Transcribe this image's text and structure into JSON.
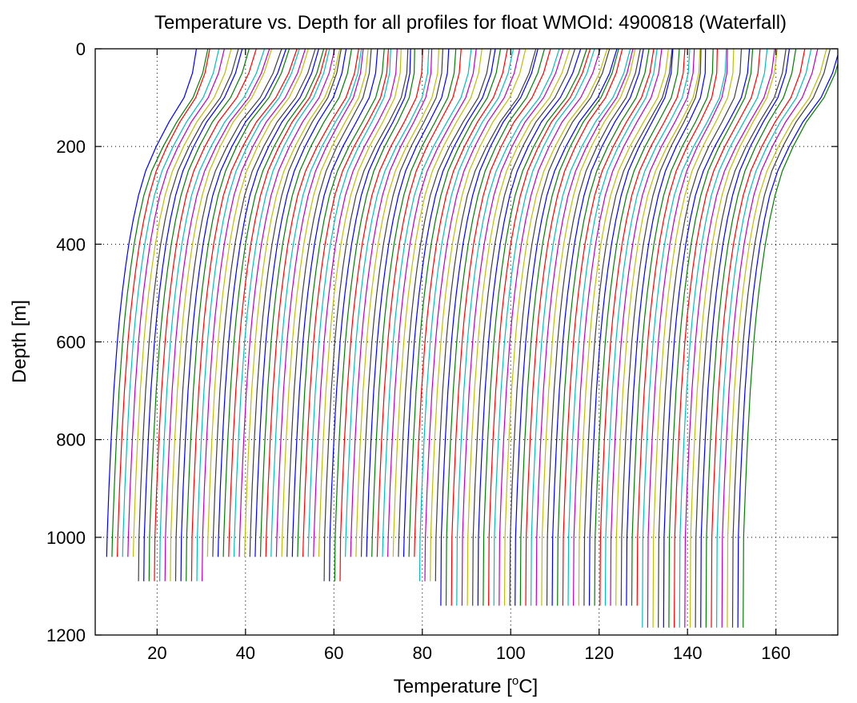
{
  "chart_data": {
    "type": "line",
    "title": "Temperature vs. Depth for all profiles for float WMOId: 4900818 (Waterfall)",
    "xlabel": "Temperature [",
    "xlabel_sup": "o",
    "xlabel_tail": "C]",
    "ylabel": "Depth [m]",
    "xlim": [
      6,
      174
    ],
    "ylim": [
      0,
      1200
    ],
    "y_reversed": true,
    "grid": true,
    "xticks": [
      20,
      40,
      60,
      80,
      100,
      120,
      140,
      160
    ],
    "yticks": [
      0,
      200,
      400,
      600,
      800,
      1000,
      1200
    ],
    "color_cycle": [
      "#0000ff",
      "#008000",
      "#ff0000",
      "#00bfbf",
      "#bf00bf",
      "#bfbf00",
      "#404040"
    ],
    "profile_count": 121,
    "profile_offset_step": 1.2,
    "first_profile_surface_temperature": 28,
    "depth_samples": [
      0,
      50,
      100,
      150,
      200,
      250,
      300,
      350,
      400,
      450,
      500,
      550,
      600,
      650,
      700,
      750,
      800,
      850,
      900,
      950,
      1000
    ],
    "mean_profile_temperature": [
      28.0,
      27.5,
      26.0,
      23.0,
      20.0,
      17.5,
      15.8,
      14.6,
      13.6,
      12.8,
      12.1,
      11.5,
      11.0,
      10.6,
      10.2,
      9.9,
      9.6,
      9.35,
      9.1,
      8.9,
      8.7
    ],
    "profile_bottom_depths": [
      {
        "from_profile": 0,
        "to_profile": 5,
        "depth": 1040
      },
      {
        "from_profile": 6,
        "to_profile": 18,
        "depth": 1090
      },
      {
        "from_profile": 19,
        "to_profile": 40,
        "depth": 1040
      },
      {
        "from_profile": 41,
        "to_profile": 44,
        "depth": 1090
      },
      {
        "from_profile": 45,
        "to_profile": 58,
        "depth": 1040
      },
      {
        "from_profile": 59,
        "to_profile": 62,
        "depth": 1090
      },
      {
        "from_profile": 63,
        "to_profile": 100,
        "depth": 1140
      },
      {
        "from_profile": 101,
        "to_profile": 120,
        "depth": 1185
      }
    ]
  }
}
